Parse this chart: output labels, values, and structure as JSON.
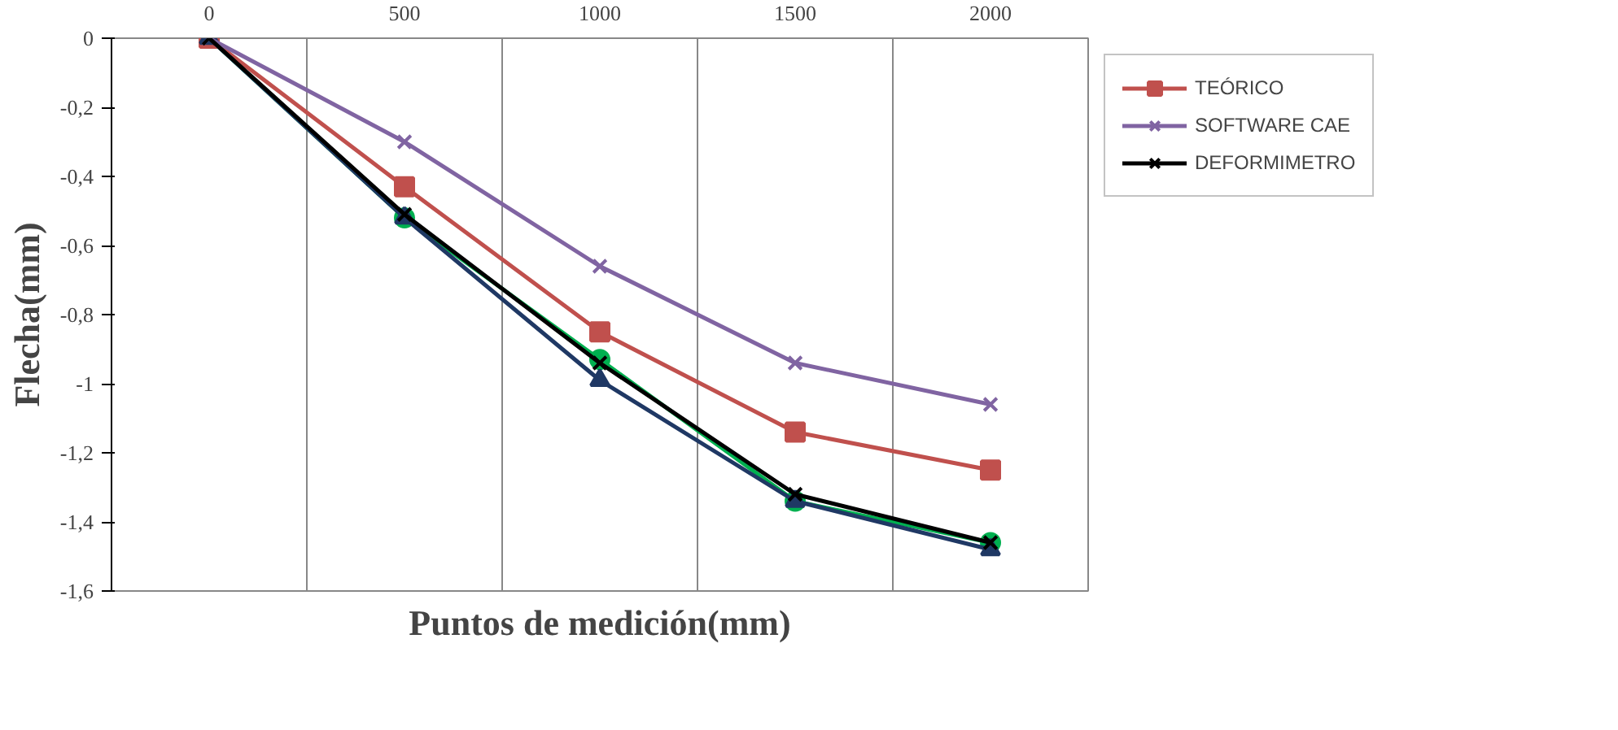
{
  "chart_data": {
    "type": "line",
    "xlabel": "Puntos de medición(mm)",
    "ylabel": "Flecha(mm)",
    "categories": [
      "0",
      "500",
      "1000",
      "1500",
      "2000"
    ],
    "ylim": [
      -1.6,
      0
    ],
    "yticks": [
      {
        "value": -1.6,
        "label": "-1,6"
      },
      {
        "value": -1.4,
        "label": "-1,4"
      },
      {
        "value": -1.2,
        "label": "-1,2"
      },
      {
        "value": -1,
        "label": "-1"
      },
      {
        "value": -0.8,
        "label": "-0,8"
      },
      {
        "value": -0.6,
        "label": "-0,6"
      },
      {
        "value": -0.4,
        "label": "-0,4"
      },
      {
        "value": -0.2,
        "label": "-0,2"
      },
      0
    ],
    "grid": "x",
    "legend": "right",
    "series": [
      {
        "color": "#00b050",
        "marker": "circle",
        "values": [
          0,
          -0.52,
          -0.93,
          -1.34,
          -1.46
        ]
      },
      {
        "name": "TEÓRICO",
        "color": "#c0504d",
        "marker": "square",
        "values": [
          0,
          -0.43,
          -0.85,
          -1.14,
          -1.25
        ]
      },
      {
        "color": "#1f3864",
        "marker": "triangle",
        "values": [
          0,
          -0.52,
          -0.99,
          -1.34,
          -1.48
        ]
      },
      {
        "name": "SOFTWARE CAE",
        "color": "#8064a2",
        "marker": "cross",
        "values": [
          0,
          -0.3,
          -0.66,
          -0.94,
          -1.06
        ]
      },
      {
        "name": "DEFORMIMETRO",
        "color": "#000000",
        "marker": "cross",
        "values": [
          0,
          -0.51,
          -0.94,
          -1.32,
          -1.46
        ]
      }
    ]
  }
}
